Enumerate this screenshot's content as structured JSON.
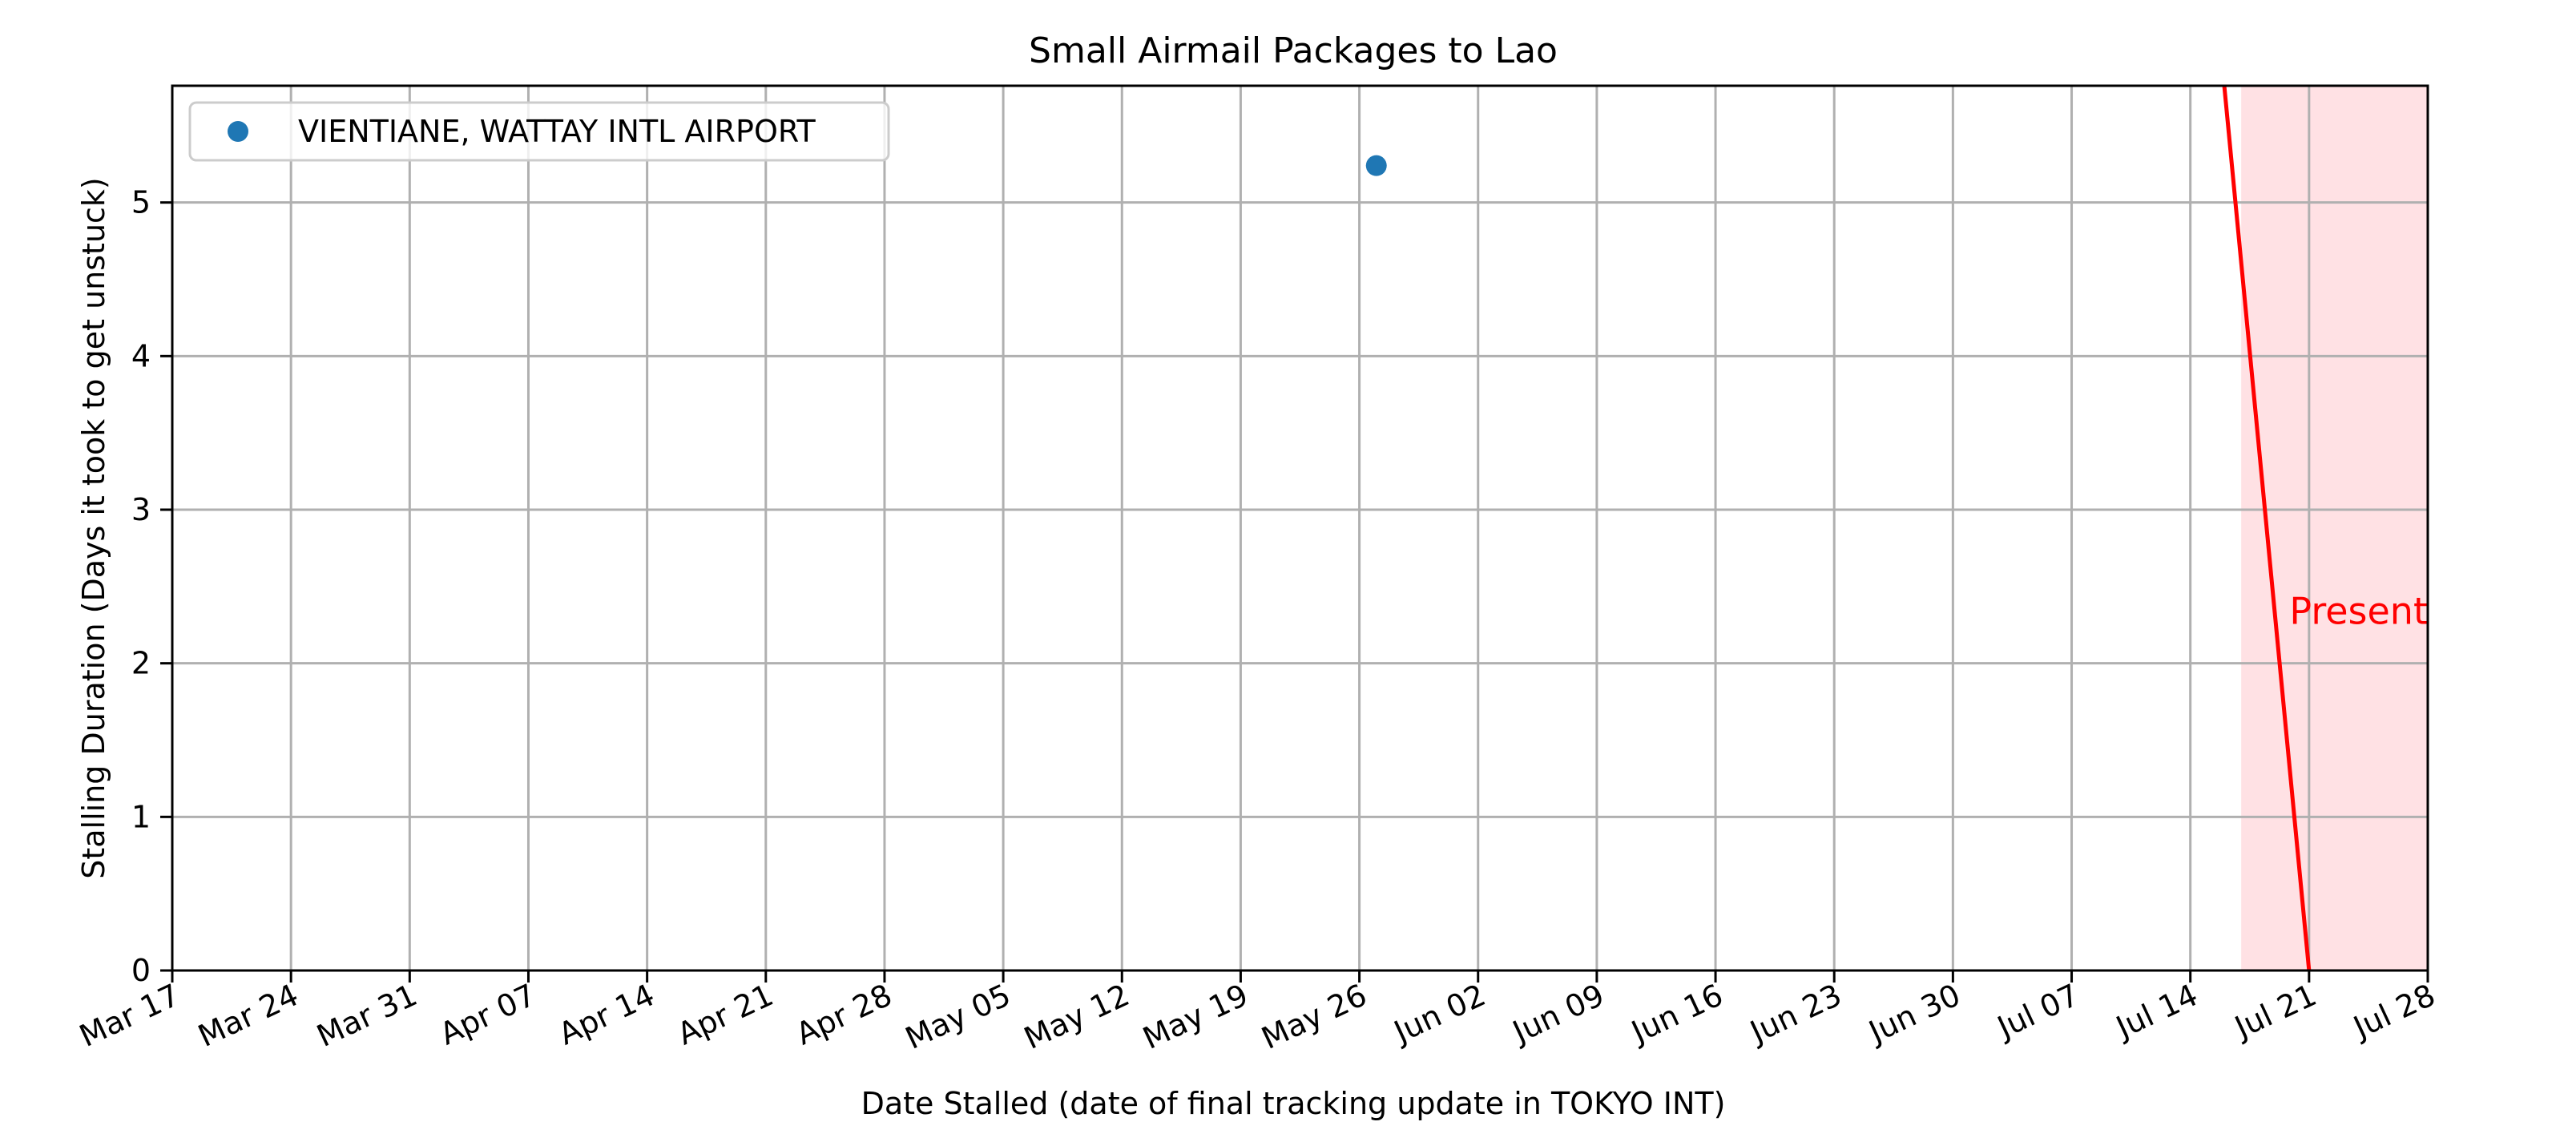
{
  "chart_data": {
    "type": "scatter",
    "title": "Small Airmail Packages to Lao",
    "xlabel": "Date Stalled (date of final tracking update in TOKYO INT)",
    "ylabel": "Stalling Duration (Days it took to get unstuck)",
    "xlim": [
      "2025-03-17",
      "2025-07-28"
    ],
    "ylim": [
      0,
      5.76
    ],
    "x_tick_labels": [
      "Mar 17",
      "Mar 24",
      "Mar 31",
      "Apr 07",
      "Apr 14",
      "Apr 21",
      "Apr 28",
      "May 05",
      "May 12",
      "May 19",
      "May 26",
      "Jun 02",
      "Jun 09",
      "Jun 16",
      "Jun 23",
      "Jun 30",
      "Jul 07",
      "Jul 14",
      "Jul 21",
      "Jul 28"
    ],
    "y_ticks": [
      0,
      1,
      2,
      3,
      4,
      5
    ],
    "grid": true,
    "legend_position": "top-left",
    "series": [
      {
        "name": "VIENTIANE, WATTAY INTL AIRPORT",
        "color": "#1f77b4",
        "points": [
          {
            "x": "2025-05-27",
            "y": 5.24
          }
        ]
      }
    ],
    "present_line": {
      "label": "Present",
      "color": "#ff0000",
      "shade_color": "#ffe1e4",
      "shade_from": "2025-07-17",
      "line": [
        {
          "x": "2025-07-16",
          "y": 5.76
        },
        {
          "x": "2025-07-21",
          "y": 0
        }
      ]
    }
  }
}
